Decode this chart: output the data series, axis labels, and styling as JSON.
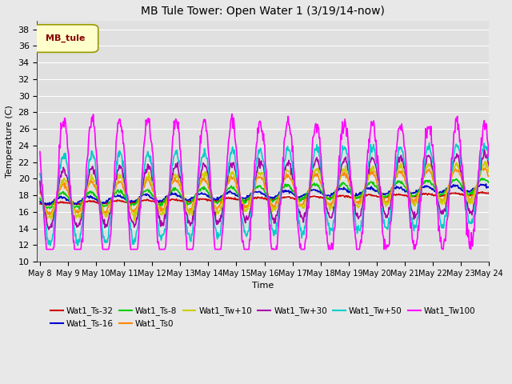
{
  "title": "MB Tule Tower: Open Water 1 (3/19/14-now)",
  "xlabel": "Time",
  "ylabel": "Temperature (C)",
  "ylim": [
    10,
    39
  ],
  "yticks": [
    10,
    12,
    14,
    16,
    18,
    20,
    22,
    24,
    26,
    28,
    30,
    32,
    34,
    36,
    38
  ],
  "bg_color": "#e8e8e8",
  "plot_bg_color": "#e0e0e0",
  "grid_color": "#ffffff",
  "series": [
    {
      "label": "Wat1_Ts-32",
      "color": "#cc0000",
      "lw": 1.2
    },
    {
      "label": "Wat1_Ts-16",
      "color": "#0000cc",
      "lw": 1.2
    },
    {
      "label": "Wat1_Ts-8",
      "color": "#00cc00",
      "lw": 1.2
    },
    {
      "label": "Wat1_Ts0",
      "color": "#ff8800",
      "lw": 1.2
    },
    {
      "label": "Wat1_Tw+10",
      "color": "#cccc00",
      "lw": 1.2
    },
    {
      "label": "Wat1_Tw+30",
      "color": "#aa00aa",
      "lw": 1.2
    },
    {
      "label": "Wat1_Tw+50",
      "color": "#00cccc",
      "lw": 1.2
    },
    {
      "label": "Wat1_Tw100",
      "color": "#ff00ff",
      "lw": 1.2
    }
  ],
  "legend_box_facecolor": "#ffffcc",
  "legend_box_edgecolor": "#999900",
  "legend_box_text": "MB_tule",
  "legend_box_text_color": "#880000",
  "n_days": 16,
  "start_day": 8,
  "figsize": [
    6.4,
    4.8
  ],
  "dpi": 100
}
